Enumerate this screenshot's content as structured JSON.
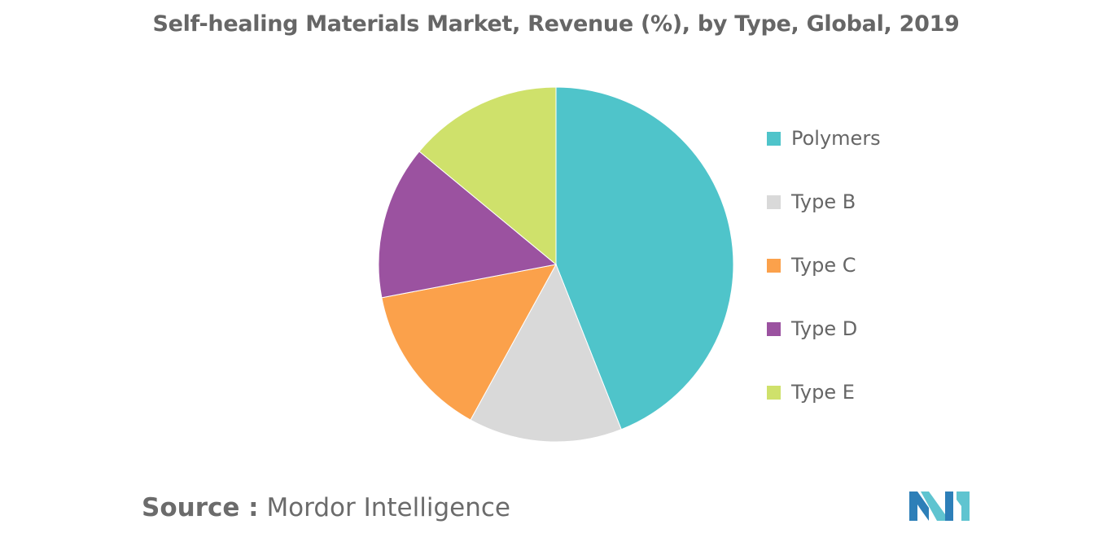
{
  "chart_data": {
    "type": "pie",
    "title": "Self-healing Materials Market, Revenue (%), by Type, Global, 2019",
    "categories": [
      "Polymers",
      "Type B",
      "Type C",
      "Type D",
      "Type E"
    ],
    "values": [
      44,
      14,
      14,
      14,
      14
    ],
    "colors": [
      "#4fc4ca",
      "#d9d9d9",
      "#fba14b",
      "#9b52a0",
      "#cfe16b"
    ],
    "legend_position": "right"
  },
  "source": {
    "label": "Source :",
    "text": "Mordor Intelligence"
  },
  "logo": {
    "icon": "mordor-intelligence-logo",
    "colors": [
      "#2d7fb8",
      "#5fc4d0"
    ]
  }
}
